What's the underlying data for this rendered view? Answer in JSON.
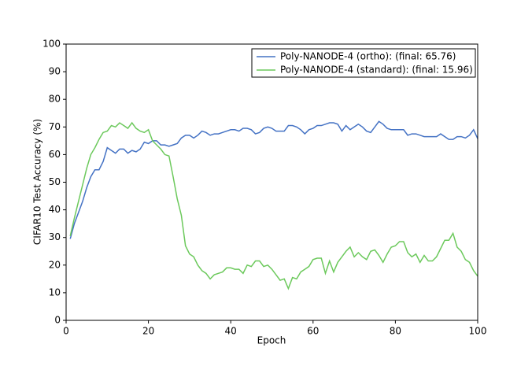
{
  "chart_data": {
    "type": "line",
    "xlabel": "Epoch",
    "ylabel": "CIFAR10 Test Accuracy (%)",
    "x": [
      1,
      2,
      3,
      4,
      5,
      6,
      7,
      8,
      9,
      10,
      11,
      12,
      13,
      14,
      15,
      16,
      17,
      18,
      19,
      20,
      21,
      22,
      23,
      24,
      25,
      26,
      27,
      28,
      29,
      30,
      31,
      32,
      33,
      34,
      35,
      36,
      37,
      38,
      39,
      40,
      41,
      42,
      43,
      44,
      45,
      46,
      47,
      48,
      49,
      50,
      51,
      52,
      53,
      54,
      55,
      56,
      57,
      58,
      59,
      60,
      61,
      62,
      63,
      64,
      65,
      66,
      67,
      68,
      69,
      70,
      71,
      72,
      73,
      74,
      75,
      76,
      77,
      78,
      79,
      80,
      81,
      82,
      83,
      84,
      85,
      86,
      87,
      88,
      89,
      90,
      91,
      92,
      93,
      94,
      95,
      96,
      97,
      98,
      99,
      100
    ],
    "series": [
      {
        "name": "Poly-NANODE-4 (ortho): (final: 65.76)",
        "color": "#4472c4",
        "values": [
          29.5,
          35,
          39,
          43,
          48,
          52,
          54.5,
          54.5,
          57.5,
          62.5,
          61.5,
          60.5,
          62,
          62,
          60.5,
          61.5,
          61,
          62,
          64.5,
          64,
          65,
          65,
          63.5,
          63.5,
          63,
          63.5,
          64,
          66,
          67,
          67,
          66,
          67,
          68.5,
          68,
          67,
          67.5,
          67.5,
          68,
          68.5,
          69,
          69,
          68.5,
          69.5,
          69.5,
          69,
          67.5,
          68,
          69.5,
          70,
          69.5,
          68.5,
          68.5,
          68.5,
          70.5,
          70.5,
          70,
          69,
          67.5,
          69,
          69.5,
          70.5,
          70.5,
          71,
          71.5,
          71.5,
          71,
          68.5,
          70.5,
          69,
          70,
          71,
          70,
          68.5,
          68,
          70,
          72,
          71,
          69.5,
          69,
          69,
          69,
          69,
          67,
          67.5,
          67.5,
          67,
          66.5,
          66.5,
          66.5,
          66.5,
          67.5,
          66.5,
          65.5,
          65.5,
          66.5,
          66.5,
          66,
          67,
          69,
          65.76
        ]
      },
      {
        "name": "Poly-NANODE-4 (standard): (final: 15.96)",
        "color": "#6cc95c",
        "values": [
          30.5,
          37,
          43,
          49,
          55,
          60,
          62.5,
          65.5,
          68,
          68.5,
          70.5,
          70,
          71.5,
          70.5,
          69.5,
          71.5,
          69.5,
          68.5,
          68,
          69,
          65,
          63.5,
          62,
          60,
          59.5,
          52,
          44,
          38,
          27,
          24,
          23,
          20,
          18,
          17,
          15,
          16.5,
          17,
          17.5,
          19,
          19,
          18.5,
          18.5,
          17,
          20,
          19.5,
          21.5,
          21.5,
          19.5,
          20,
          18.5,
          16.5,
          14.5,
          15,
          11.5,
          15.5,
          15,
          17.5,
          18.5,
          19.5,
          22,
          22.5,
          22.5,
          17,
          21.5,
          17.5,
          21,
          23,
          25,
          26.5,
          23,
          24.5,
          23,
          22,
          25,
          25.5,
          23.5,
          21,
          24,
          26.5,
          27,
          28.5,
          28.5,
          24.5,
          23,
          24,
          21,
          23.5,
          21.5,
          21.5,
          23,
          26,
          29,
          29,
          31.5,
          26.5,
          25,
          22,
          21,
          18,
          15.96
        ]
      }
    ],
    "xlim": [
      0,
      100
    ],
    "xticks": [
      0,
      20,
      40,
      60,
      80,
      100
    ],
    "ylim": [
      0,
      100
    ],
    "yticks": [
      0,
      10,
      20,
      30,
      40,
      50,
      60,
      70,
      80,
      90,
      100
    ],
    "grid": false,
    "legend": "upper right"
  }
}
